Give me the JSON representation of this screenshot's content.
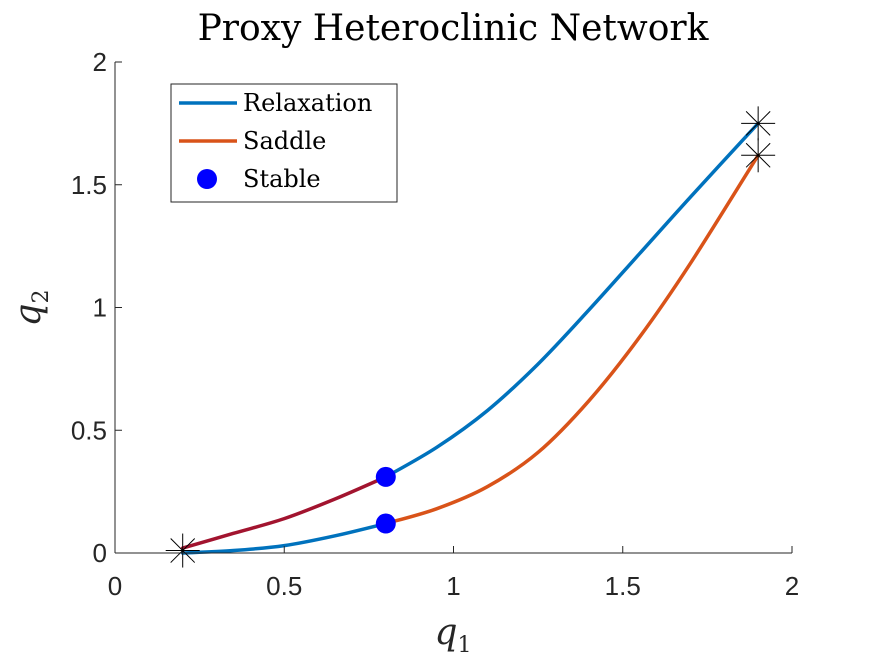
{
  "chart_data": {
    "type": "line",
    "title": "Proxy Heteroclinic Network",
    "xlabel": "q",
    "xlabel_sub": "1",
    "ylabel": "q",
    "ylabel_sub": "2",
    "xlim": [
      0,
      2
    ],
    "ylim": [
      0,
      2
    ],
    "xticks": [
      "0",
      "0.5",
      "1",
      "1.5",
      "2"
    ],
    "yticks": [
      "0",
      "0.5",
      "1",
      "1.5",
      "2"
    ],
    "xtick_values": [
      0,
      0.5,
      1,
      1.5,
      2
    ],
    "ytick_values": [
      0,
      0.5,
      1,
      1.5,
      2
    ],
    "grid": false,
    "legend_position": "top-left",
    "legend": [
      {
        "label": "Relaxation",
        "kind": "line",
        "color": "#0072BD"
      },
      {
        "label": "Saddle",
        "kind": "line",
        "color": "#D95319"
      },
      {
        "label": "Stable",
        "kind": "marker",
        "color": "#0000FF"
      }
    ],
    "series": [
      {
        "name": "Relaxation",
        "color": "#0072BD",
        "curves": [
          {
            "x": [
              0.8,
              0.95,
              1.1,
              1.25,
              1.4,
              1.55,
              1.7,
              1.9
            ],
            "y": [
              0.31,
              0.43,
              0.58,
              0.77,
              0.99,
              1.22,
              1.45,
              1.75
            ]
          },
          {
            "x": [
              0.2,
              0.35,
              0.5,
              0.65,
              0.8
            ],
            "y": [
              0.0,
              0.01,
              0.03,
              0.07,
              0.12
            ]
          }
        ]
      },
      {
        "name": "Saddle",
        "color": "#D95319",
        "curves": [
          {
            "x": [
              0.8,
              0.95,
              1.1,
              1.25,
              1.4,
              1.55,
              1.7,
              1.9
            ],
            "y": [
              0.12,
              0.18,
              0.27,
              0.41,
              0.62,
              0.88,
              1.18,
              1.62
            ]
          }
        ]
      },
      {
        "name": "",
        "color": "#A2142F",
        "curves": [
          {
            "x": [
              0.2,
              0.35,
              0.5,
              0.65,
              0.8
            ],
            "y": [
              0.02,
              0.08,
              0.14,
              0.22,
              0.31
            ]
          }
        ]
      }
    ],
    "stable_points": [
      {
        "x": 0.8,
        "y": 0.31
      },
      {
        "x": 0.8,
        "y": 0.12
      }
    ],
    "star_points": [
      {
        "x": 0.2,
        "y": 0.01
      },
      {
        "x": 1.9,
        "y": 1.75
      },
      {
        "x": 1.9,
        "y": 1.62
      }
    ],
    "stable_color": "#0000FF"
  }
}
